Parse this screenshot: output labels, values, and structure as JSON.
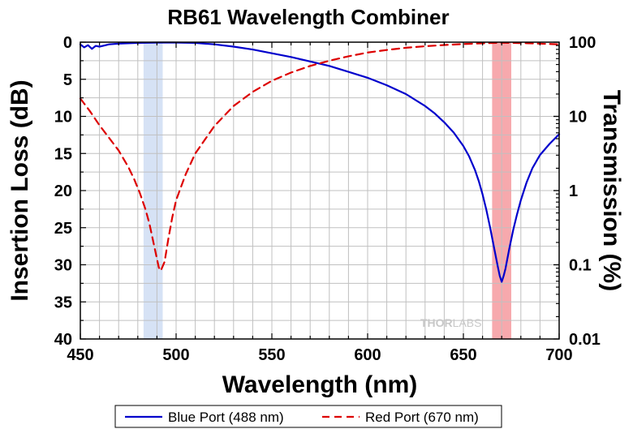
{
  "chart_data": {
    "type": "line",
    "title": "RB61 Wavelength Combiner",
    "xlabel": "Wavelength (nm)",
    "ylabel": "Insertion Loss (dB)",
    "y2label": "Transmission (%)",
    "xlim": [
      450,
      700
    ],
    "ylim": [
      40,
      0
    ],
    "y2lim": [
      0.01,
      100
    ],
    "y2scale": "log",
    "xticks": [
      450,
      500,
      550,
      600,
      650,
      700
    ],
    "yticks": [
      0,
      5,
      10,
      15,
      20,
      25,
      30,
      35,
      40
    ],
    "y2ticks": [
      {
        "value": 100,
        "label": "100"
      },
      {
        "value": 10,
        "label": "10"
      },
      {
        "value": 1,
        "label": "1"
      },
      {
        "value": 0.1,
        "label": "0.1"
      },
      {
        "value": 0.01,
        "label": "0.01"
      }
    ],
    "grid": true,
    "legend_position": "bottom",
    "highlight_bands": [
      {
        "x": [
          483,
          493
        ],
        "color": "#d6e2f5"
      },
      {
        "x": [
          665,
          675
        ],
        "color": "#f7a9ad"
      }
    ],
    "series": [
      {
        "name": "Blue Port (488 nm)",
        "color": "#0000cc",
        "style": "solid",
        "x": [
          450,
          452,
          454,
          456,
          458,
          460,
          465,
          470,
          480,
          490,
          500,
          510,
          520,
          530,
          540,
          550,
          560,
          570,
          580,
          590,
          600,
          610,
          620,
          630,
          635,
          640,
          645,
          650,
          653,
          656,
          658,
          660,
          662,
          664,
          666,
          668,
          669,
          670,
          671,
          672,
          674,
          676,
          678,
          680,
          683,
          686,
          690,
          695,
          700
        ],
        "values": [
          0.3,
          0.7,
          0.4,
          0.9,
          0.5,
          0.6,
          0.3,
          0.2,
          0.1,
          0.05,
          0.05,
          0.1,
          0.3,
          0.6,
          1.0,
          1.5,
          2.0,
          2.6,
          3.2,
          4.0,
          4.8,
          5.8,
          7.0,
          8.6,
          9.6,
          10.8,
          12.2,
          14.0,
          15.4,
          17.2,
          18.7,
          20.5,
          22.6,
          25.0,
          27.7,
          30.3,
          31.5,
          32.3,
          31.5,
          30.5,
          27.8,
          25.3,
          23.2,
          21.3,
          18.9,
          17.0,
          15.2,
          13.7,
          12.4
        ]
      },
      {
        "name": "Red Port (670 nm)",
        "color": "#dd0000",
        "style": "dashed",
        "x": [
          450,
          455,
          460,
          465,
          470,
          475,
          478,
          481,
          484,
          486,
          488,
          490,
          491,
          492,
          494,
          496,
          498,
          500,
          505,
          510,
          520,
          530,
          540,
          550,
          560,
          570,
          580,
          590,
          600,
          610,
          620,
          630,
          640,
          650,
          660,
          670,
          680,
          690,
          700
        ],
        "values": [
          7.6,
          9.3,
          11.2,
          12.9,
          14.6,
          16.8,
          18.4,
          20.3,
          22.5,
          24.4,
          26.8,
          29.2,
          30.4,
          30.8,
          29.6,
          26.4,
          23.6,
          21.3,
          17.8,
          15.0,
          11.3,
          8.6,
          6.7,
          5.2,
          4.1,
          3.2,
          2.5,
          1.9,
          1.4,
          1.05,
          0.75,
          0.55,
          0.38,
          0.25,
          0.15,
          0.08,
          0.12,
          0.2,
          0.3
        ]
      }
    ]
  },
  "watermark": {
    "part1": "THOR",
    "part2": "LABS"
  }
}
